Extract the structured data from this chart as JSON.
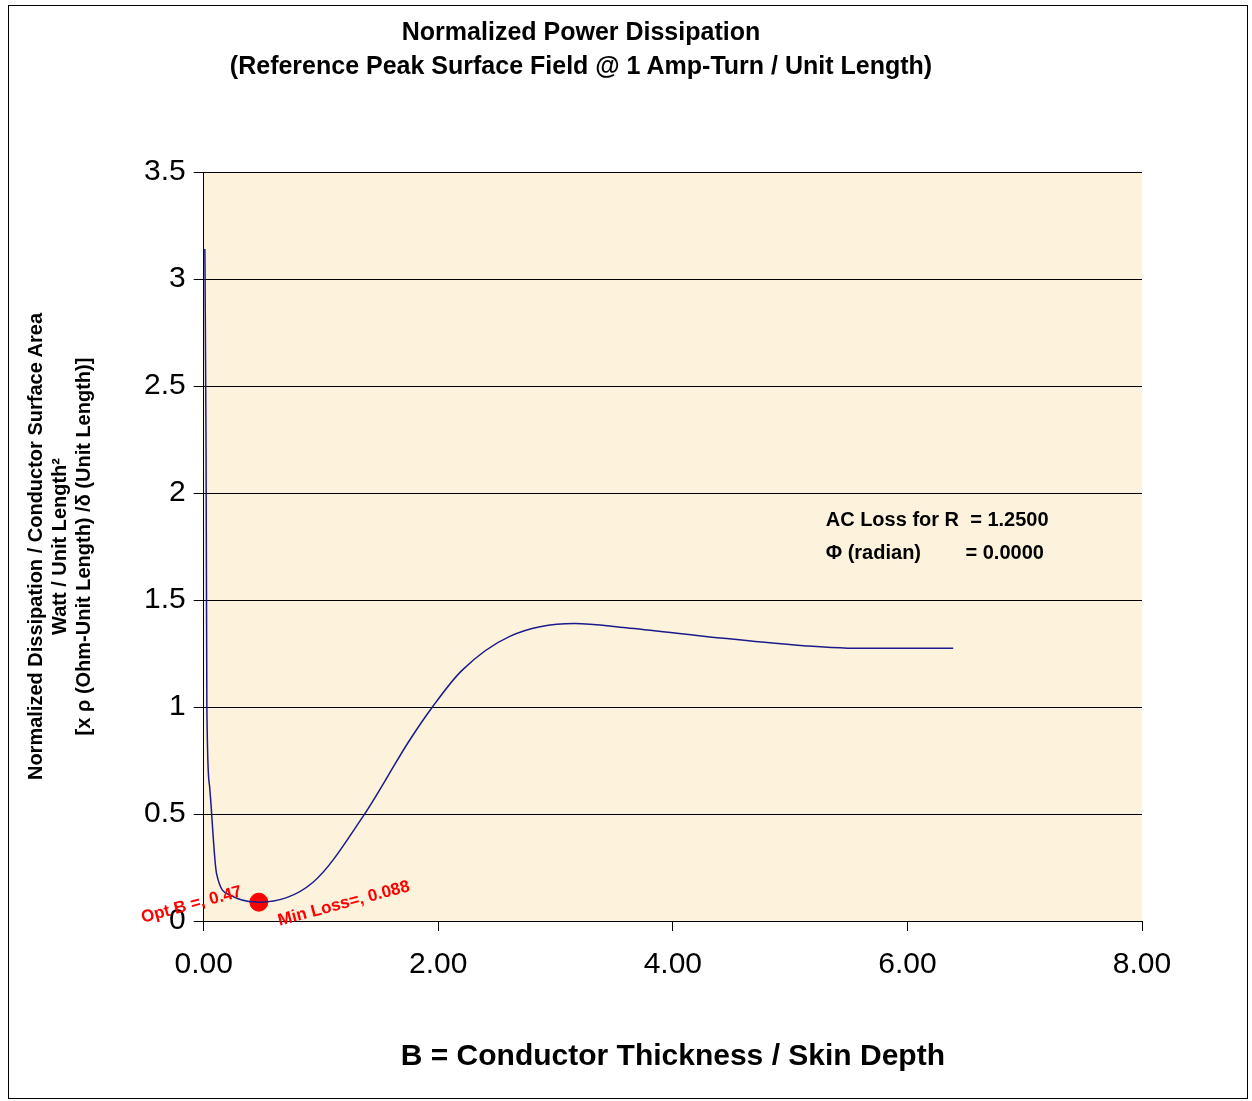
{
  "chart_data": {
    "type": "line",
    "title": "Normalized Power Dissipation",
    "subtitle": "(Reference Peak Surface Field @ 1 Amp-Turn / Unit Length)",
    "xlabel": "B = Conductor Thickness / Skin Depth",
    "ylabel": "Normalized Dissipation / Conductor Surface Area\nWatt / Unit Length²\n[x ρ (Ohm-Unit Length) /δ (Unit Length)]",
    "series": [
      {
        "color": "#1a1a8c",
        "marker": "none",
        "x": [
          0.01,
          0.02,
          0.027,
          0.05,
          0.11,
          0.23,
          0.47,
          0.93,
          1.36,
          1.75,
          1.95,
          2.2,
          2.61,
          3.16,
          3.6,
          4.28,
          5.14,
          5.49,
          6.39
        ],
        "values": [
          3.14,
          2.2,
          1.0,
          0.63,
          0.22,
          0.12,
          0.088,
          0.18,
          0.49,
          0.84,
          1.0,
          1.17,
          1.33,
          1.39,
          1.37,
          1.33,
          1.285,
          1.275,
          1.274
        ]
      },
      {
        "type": "scatter",
        "color": "#ff0000",
        "marker": "circle",
        "x": [
          0.47
        ],
        "values": [
          0.088
        ]
      }
    ],
    "xlim": [
      0,
      8
    ],
    "xticks": [
      {
        "value": 0,
        "label": "0.00"
      },
      {
        "value": 2,
        "label": "2.00"
      },
      {
        "value": 4,
        "label": "4.00"
      },
      {
        "value": 6,
        "label": "6.00"
      },
      {
        "value": 8,
        "label": "8.00"
      }
    ],
    "ylim": [
      0,
      3.5
    ],
    "yticks": [
      0,
      0.5,
      1,
      1.5,
      2,
      2.5,
      3,
      3.5
    ],
    "grid": "y",
    "legend": false,
    "annotations": [
      {
        "text": "Opt B =, 0.47",
        "x": 0.47,
        "y": 0.088
      },
      {
        "text": "Min Loss=, 0.088",
        "x": 0.47,
        "y": 0.088
      },
      "AC Loss for R  = 1.2500",
      "Φ (radian)        = 0.0000"
    ]
  }
}
